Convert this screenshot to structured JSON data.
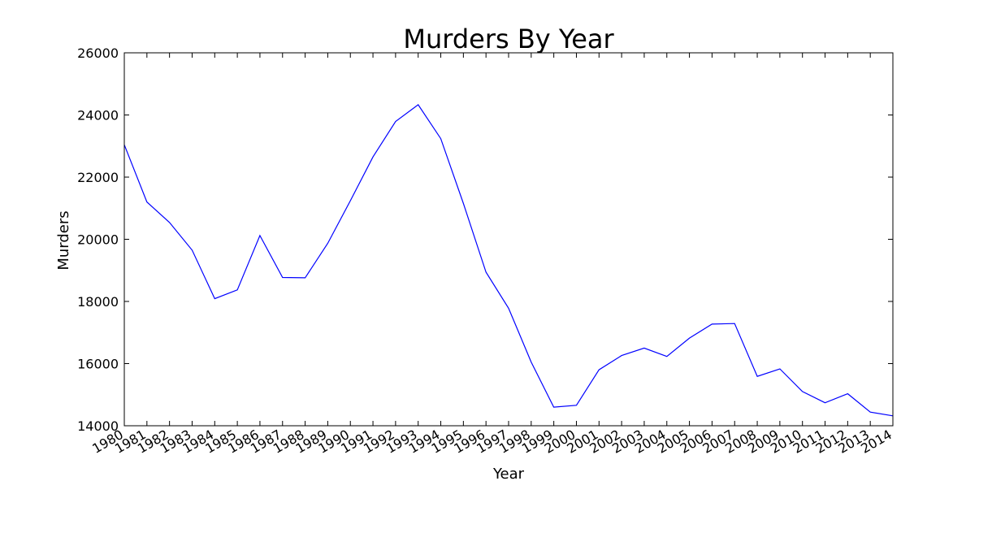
{
  "chart_data": {
    "type": "line",
    "title": "Murders By Year",
    "xlabel": "Year",
    "ylabel": "Murders",
    "x": [
      "1980",
      "1981",
      "1982",
      "1983",
      "1984",
      "1985",
      "1986",
      "1987",
      "1988",
      "1989",
      "1990",
      "1991",
      "1992",
      "1993",
      "1994",
      "1995",
      "1996",
      "1997",
      "1998",
      "1999",
      "2000",
      "2001",
      "2002",
      "2003",
      "2004",
      "2005",
      "2006",
      "2007",
      "2008",
      "2009",
      "2010",
      "2011",
      "2012",
      "2013",
      "2014"
    ],
    "series": [
      {
        "values": [
          23040,
          21200,
          20540,
          19650,
          18090,
          18370,
          20120,
          18770,
          18760,
          19870,
          21240,
          22650,
          23790,
          24330,
          23240,
          21150,
          18940,
          17780,
          16050,
          14600,
          14660,
          15800,
          16260,
          16500,
          16230,
          16820,
          17270,
          17290,
          15590,
          15830,
          15100,
          14740,
          15030,
          14440,
          14320
        ],
        "color": "#0000ff"
      }
    ],
    "ylim": [
      14000,
      26000
    ],
    "yticks": [
      "14000",
      "16000",
      "18000",
      "20000",
      "22000",
      "24000",
      "26000"
    ],
    "grid": false,
    "legend": "none"
  }
}
